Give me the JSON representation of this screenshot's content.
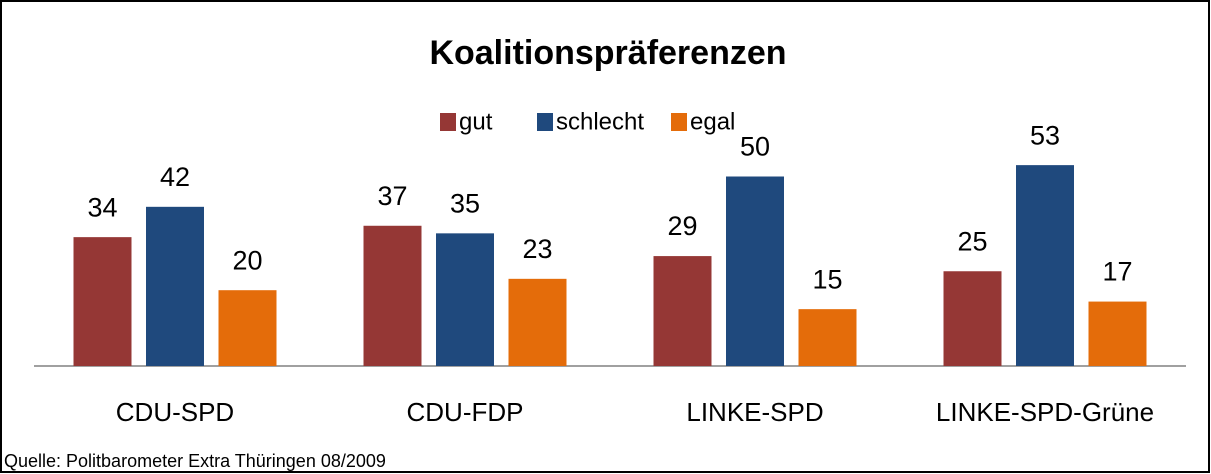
{
  "chart_data": {
    "type": "bar",
    "title": "Koalitionspräferenzen",
    "categories": [
      "CDU-SPD",
      "CDU-FDP",
      "LINKE-SPD",
      "LINKE-SPD-Grüne"
    ],
    "series": [
      {
        "name": "gut",
        "color": "#953735",
        "values": [
          34,
          37,
          29,
          25
        ]
      },
      {
        "name": "schlecht",
        "color": "#1f497d",
        "values": [
          42,
          35,
          50,
          53
        ]
      },
      {
        "name": "egal",
        "color": "#e46c0a",
        "values": [
          20,
          23,
          15,
          17
        ]
      }
    ],
    "legend": "top",
    "source": "Quelle: Politbarometer Extra Thüringen 08/2009"
  }
}
